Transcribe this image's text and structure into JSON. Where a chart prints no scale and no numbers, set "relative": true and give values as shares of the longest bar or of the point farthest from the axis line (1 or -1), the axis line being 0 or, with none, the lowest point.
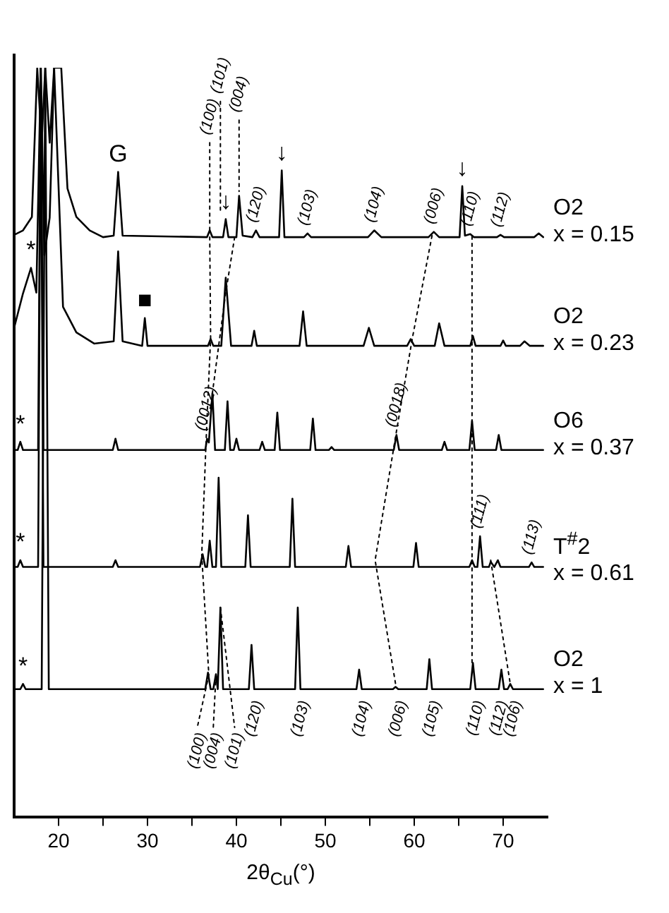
{
  "chart_data": {
    "type": "line",
    "relative": true,
    "marker": "none",
    "legend": false,
    "xlabel": "2θ$_{Cu}$(°)",
    "xlim": [
      15,
      75
    ],
    "xticks": [
      20,
      {
        "value": 25,
        "label": null
      },
      30,
      {
        "value": 35,
        "label": null
      },
      40,
      {
        "value": 45,
        "label": null
      },
      50,
      {
        "value": 55,
        "label": null
      },
      60,
      {
        "value": 65,
        "label": null
      },
      70
    ],
    "series": [
      {
        "type": "line",
        "name": "O2\nx = 0.15",
        "color": "#000000",
        "x": [
          15,
          16,
          17,
          17.6,
          18.1,
          18.5,
          19.0,
          19.5,
          20.3,
          21,
          22,
          23.5,
          25,
          26.2,
          26.7,
          27.2,
          36.7,
          37.0,
          37.3,
          38.5,
          38.8,
          39.1,
          40.0,
          40.3,
          40.7,
          41.8,
          42.2,
          42.6,
          44.8,
          45.1,
          45.4,
          47.6,
          48.0,
          48.4,
          54.8,
          55.5,
          56.3,
          61.6,
          62.2,
          62.8,
          65.1,
          65.4,
          65.7,
          66.3,
          66.7,
          69.3,
          69.7,
          70.1,
          73.5,
          74.0,
          74.5
        ],
        "values": [
          0.777,
          0.783,
          0.801,
          1,
          0.9,
          1,
          0.9,
          1,
          1,
          0.839,
          0.801,
          0.783,
          0.774,
          0.776,
          0.861,
          0.776,
          0.774,
          0.783,
          0.774,
          0.774,
          0.798,
          0.774,
          0.774,
          0.829,
          0.776,
          0.774,
          0.783,
          0.774,
          0.774,
          0.863,
          0.774,
          0.774,
          0.779,
          0.774,
          0.774,
          0.783,
          0.774,
          0.774,
          0.781,
          0.774,
          0.774,
          0.842,
          0.776,
          0.778,
          0.774,
          0.774,
          0.777,
          0.774,
          0.774,
          0.779,
          0.774
        ]
      },
      {
        "type": "line",
        "name": "O2\nx = 0.23",
        "color": "#000000",
        "x": [
          15,
          16,
          16.9,
          17.5,
          18.0,
          18.4,
          19.0,
          19.5,
          20.5,
          22,
          24,
          26.2,
          26.7,
          27.2,
          29.4,
          29.7,
          30.0,
          36.8,
          37.1,
          37.4,
          38.3,
          38.8,
          39.4,
          41.7,
          42.0,
          42.3,
          47.1,
          47.5,
          47.9,
          54.3,
          54.9,
          55.5,
          59.2,
          59.6,
          60.0,
          62.3,
          62.8,
          63.4,
          66.3,
          66.6,
          66.9,
          69.7,
          70.0,
          70.3,
          71.9,
          72.4,
          73.0,
          74.5
        ],
        "values": [
          0.653,
          0.699,
          0.733,
          0.7,
          1,
          0.75,
          0.8,
          1,
          0.681,
          0.647,
          0.632,
          0.635,
          0.755,
          0.635,
          0.629,
          0.666,
          0.629,
          0.629,
          0.638,
          0.629,
          0.629,
          0.72,
          0.629,
          0.629,
          0.649,
          0.629,
          0.629,
          0.675,
          0.629,
          0.629,
          0.653,
          0.629,
          0.629,
          0.638,
          0.629,
          0.629,
          0.659,
          0.629,
          0.629,
          0.642,
          0.629,
          0.629,
          0.636,
          0.629,
          0.629,
          0.635,
          0.629,
          0.629
        ]
      },
      {
        "type": "line",
        "name": "O6\nx = 0.37",
        "color": "#000000",
        "x": [
          15,
          15.4,
          15.7,
          16.0,
          17.7,
          18.0,
          18.3,
          26.1,
          26.4,
          26.7,
          36.5,
          36.7,
          36.9,
          37.3,
          37.6,
          38.7,
          39.0,
          39.3,
          39.7,
          40.0,
          40.3,
          42.6,
          42.9,
          43.2,
          44.3,
          44.6,
          44.9,
          48.3,
          48.6,
          48.9,
          50.4,
          50.7,
          51.0,
          57.7,
          58.0,
          58.3,
          63.1,
          63.4,
          63.7,
          66.2,
          66.5,
          66.8,
          69.2,
          69.5,
          69.8,
          74.5
        ],
        "values": [
          0.49,
          0.49,
          0.501,
          0.49,
          0.49,
          1,
          0.49,
          0.49,
          0.505,
          0.49,
          0.49,
          0.505,
          0.5,
          0.566,
          0.49,
          0.49,
          0.555,
          0.49,
          0.49,
          0.505,
          0.49,
          0.49,
          0.501,
          0.49,
          0.49,
          0.54,
          0.49,
          0.49,
          0.532,
          0.49,
          0.49,
          0.494,
          0.49,
          0.49,
          0.51,
          0.49,
          0.49,
          0.501,
          0.49,
          0.49,
          0.529,
          0.49,
          0.49,
          0.51,
          0.49,
          0.49
        ]
      },
      {
        "type": "line",
        "name": "T$^{#}$2\nx = 0.61",
        "color": "#000000",
        "x": [
          15,
          15.4,
          15.7,
          16.0,
          17.7,
          18.0,
          18.3,
          26.1,
          26.4,
          26.7,
          35.9,
          36.2,
          36.5,
          36.7,
          37.0,
          37.3,
          37.7,
          38.0,
          38.3,
          41.0,
          41.3,
          41.6,
          46.0,
          46.3,
          46.6,
          52.3,
          52.6,
          52.9,
          59.9,
          60.2,
          60.5,
          66.2,
          66.5,
          66.8,
          67.1,
          67.4,
          67.7,
          68.4,
          68.6,
          69.0,
          69.4,
          69.7,
          72.9,
          73.2,
          73.5,
          74.5
        ],
        "values": [
          0.334,
          0.334,
          0.343,
          0.334,
          0.334,
          1,
          0.334,
          0.334,
          0.343,
          0.334,
          0.334,
          0.351,
          0.334,
          0.334,
          0.369,
          0.334,
          0.334,
          0.453,
          0.334,
          0.334,
          0.403,
          0.334,
          0.334,
          0.425,
          0.334,
          0.334,
          0.362,
          0.334,
          0.334,
          0.366,
          0.334,
          0.334,
          0.343,
          0.334,
          0.334,
          0.375,
          0.334,
          0.334,
          0.341,
          0.334,
          0.343,
          0.334,
          0.334,
          0.34,
          0.334,
          0.334
        ]
      },
      {
        "type": "line",
        "name": "O2\nx = 1",
        "color": "#000000",
        "x": [
          15,
          15.7,
          16.0,
          16.3,
          18.1,
          18.5,
          18.9,
          36.5,
          36.8,
          37.1,
          37.4,
          37.7,
          37.9,
          38.2,
          38.5,
          41.4,
          41.7,
          42.0,
          46.6,
          46.9,
          47.2,
          53.5,
          53.8,
          54.1,
          57.6,
          57.9,
          58.2,
          61.4,
          61.7,
          62.0,
          66.3,
          66.6,
          66.9,
          69.5,
          69.8,
          70.1,
          70.5,
          70.8,
          71.1,
          74.5
        ],
        "values": [
          0.171,
          0.171,
          0.178,
          0.171,
          0.171,
          1,
          0.171,
          0.171,
          0.193,
          0.171,
          0.171,
          0.191,
          0.171,
          0.28,
          0.171,
          0.171,
          0.23,
          0.171,
          0.171,
          0.28,
          0.171,
          0.171,
          0.197,
          0.171,
          0.171,
          0.174,
          0.171,
          0.171,
          0.211,
          0.171,
          0.171,
          0.206,
          0.171,
          0.171,
          0.197,
          0.171,
          0.171,
          0.178,
          0.171,
          0.171
        ]
      },
      {
        "type": "line",
        "line_style": "dotted",
        "color": "#000000",
        "x": [
          37.0,
          37.0
        ],
        "values": [
          0.9,
          0.782
        ]
      },
      {
        "type": "line",
        "line_style": "dotted",
        "color": "#000000",
        "x": [
          38.2,
          38.2
        ],
        "values": [
          0.955,
          0.81
        ]
      },
      {
        "type": "line",
        "line_style": "dotted",
        "color": "#000000",
        "x": [
          40.3,
          40.3
        ],
        "values": [
          0.93,
          0.835
        ]
      },
      {
        "type": "line",
        "line_style": "dotted",
        "color": "#000000",
        "x": [
          37.0,
          37.1,
          36.6,
          36.1,
          36.9,
          35.6
        ],
        "values": [
          0.774,
          0.64,
          0.505,
          0.35,
          0.19,
          0.12
        ]
      },
      {
        "type": "line",
        "line_style": "dotted",
        "color": "#000000",
        "x": [
          39.8,
          38.8,
          37.3
        ],
        "values": [
          0.774,
          0.7,
          0.566
        ]
      },
      {
        "type": "line",
        "line_style": "dotted",
        "color": "#000000",
        "x": [
          62.0,
          59.8,
          58.0,
          55.6,
          57.9
        ],
        "values": [
          0.776,
          0.64,
          0.515,
          0.343,
          0.178
        ]
      },
      {
        "type": "line",
        "line_style": "dotted",
        "color": "#000000",
        "x": [
          66.5,
          66.5
        ],
        "values": [
          0.775,
          0.206
        ]
      },
      {
        "type": "line",
        "line_style": "dotted",
        "color": "#000000",
        "x": [
          68.6,
          70.8
        ],
        "values": [
          0.343,
          0.178
        ]
      },
      {
        "type": "line",
        "line_style": "dotted",
        "color": "#000000",
        "x": [
          38.2,
          39.8
        ],
        "values": [
          0.28,
          0.12
        ]
      },
      {
        "type": "line",
        "line_style": "dotted",
        "color": "#000000",
        "x": [
          37.7,
          37.4
        ],
        "values": [
          0.19,
          0.12
        ]
      }
    ],
    "annotations": [
      {
        "text": "G",
        "x": 26.7,
        "y": 0.861
      },
      {
        "text": "↓",
        "x": 38.8,
        "y": 0.798
      },
      {
        "text": "↓",
        "x": 45.1,
        "y": 0.863
      },
      {
        "text": "↓",
        "x": 65.4,
        "y": 0.842
      },
      {
        "text": "(100)",
        "x": 37.0,
        "y": 0.9
      },
      {
        "text": "(101)",
        "x": 38.2,
        "y": 0.955
      },
      {
        "text": "(004)",
        "x": 40.3,
        "y": 0.93
      },
      {
        "text": "(120)",
        "x": 42.2,
        "y": 0.783
      },
      {
        "text": "(103)",
        "x": 48.0,
        "y": 0.779
      },
      {
        "text": "(104)",
        "x": 55.5,
        "y": 0.783
      },
      {
        "text": "(006)",
        "x": 62.2,
        "y": 0.781
      },
      {
        "text": "(110)",
        "x": 66.3,
        "y": 0.778
      },
      {
        "text": "(112)",
        "x": 69.7,
        "y": 0.777
      },
      {
        "text": "*",
        "x": 16.9,
        "y": 0.733
      },
      {
        "text": "■",
        "x": 29.7,
        "y": 0.666
      },
      {
        "text": "*",
        "x": 15.7,
        "y": 0.501
      },
      {
        "text": "*",
        "x": 15.7,
        "y": 0.343
      },
      {
        "text": "*",
        "x": 16.0,
        "y": 0.178
      },
      {
        "text": "(0012)",
        "x": 36.6,
        "y": 0.505
      },
      {
        "text": "(0018)",
        "x": 58.0,
        "y": 0.51
      },
      {
        "text": "(111)",
        "x": 67.4,
        "y": 0.375
      },
      {
        "text": "(113)",
        "x": 73.2,
        "y": 0.34
      },
      {
        "text": "(100)",
        "x": 35.6,
        "y": 0.12
      },
      {
        "text": "(004)",
        "x": 37.4,
        "y": 0.12
      },
      {
        "text": "(101)",
        "x": 39.8,
        "y": 0.12
      },
      {
        "text": "(120)",
        "x": 42.0,
        "y": 0.171
      },
      {
        "text": "(103)",
        "x": 47.2,
        "y": 0.171
      },
      {
        "text": "(104)",
        "x": 54.1,
        "y": 0.171
      },
      {
        "text": "(006)",
        "x": 58.2,
        "y": 0.171
      },
      {
        "text": "(105)",
        "x": 62.0,
        "y": 0.171
      },
      {
        "text": "(110)",
        "x": 66.9,
        "y": 0.171
      },
      {
        "text": "(112)",
        "x": 69.5,
        "y": 0.171
      },
      {
        "text": "(106)",
        "x": 71.1,
        "y": 0.171
      }
    ]
  }
}
